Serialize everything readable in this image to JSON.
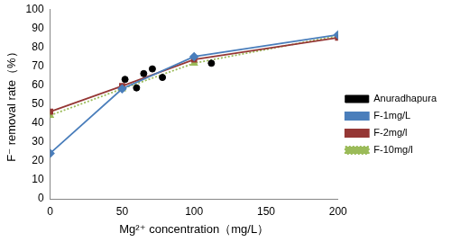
{
  "chart_data": {
    "type": "scatter",
    "x_label": "Mg²⁺ concentration（mg/L）",
    "y_label": "F⁻ removal rate（%）",
    "xlim": [
      0,
      200
    ],
    "xticks": [
      0,
      50,
      100,
      150,
      200
    ],
    "ylim": [
      0,
      100
    ],
    "yticks": [
      0,
      10,
      20,
      30,
      40,
      50,
      60,
      70,
      80,
      90,
      100
    ],
    "grid": false,
    "legend": "right",
    "series": [
      {
        "name": "Anuradhapura",
        "type": "scatter",
        "color": "#000000",
        "marker": "circle",
        "x": [
          52,
          60,
          65,
          71,
          78,
          112
        ],
        "values": [
          63,
          58.5,
          66,
          68.5,
          64,
          71.5
        ]
      },
      {
        "name": "F-1mg/L",
        "type": "line",
        "color": "#4a7ebb",
        "marker": "diamond",
        "line_style": "solid",
        "x": [
          0,
          50,
          100,
          200
        ],
        "values": [
          24,
          58,
          75,
          86.5
        ]
      },
      {
        "name": "F-2mg/l",
        "type": "line",
        "color": "#953735",
        "marker": "square",
        "line_style": "solid",
        "x": [
          0,
          50,
          100,
          200
        ],
        "values": [
          46,
          59.5,
          73.5,
          85
        ]
      },
      {
        "name": "F-10mg/l",
        "type": "line",
        "color": "#9bbb59",
        "marker": "triangle",
        "line_style": "dotted",
        "x": [
          0,
          50,
          100,
          200
        ],
        "values": [
          44,
          58,
          71.5,
          86
        ]
      }
    ]
  }
}
